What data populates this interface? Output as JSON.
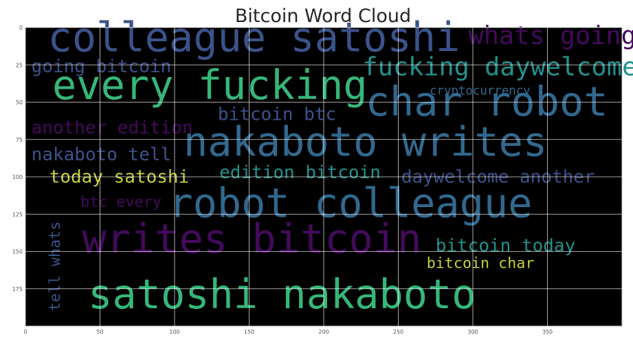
{
  "chart_data": {
    "type": "wordcloud",
    "title": "Bitcoin Word Cloud",
    "xlim": [
      0,
      400
    ],
    "ylim": [
      200,
      0
    ],
    "xticks": [
      0,
      50,
      100,
      150,
      200,
      250,
      300,
      350
    ],
    "yticks": [
      0,
      25,
      50,
      75,
      100,
      125,
      150,
      175
    ],
    "grid": true,
    "background": "#000000",
    "colors": {
      "purple": "#440a5c",
      "blue": "#3b528b",
      "teal": "#21918c",
      "green": "#35b779",
      "yellow": "#c8d33a",
      "slate": "#31688e"
    },
    "words": [
      {
        "text": "colleague satoshi",
        "x": 15,
        "y": 16,
        "size": 27,
        "color": "blue"
      },
      {
        "text": "whats going",
        "x": 297,
        "y": 11,
        "size": 17,
        "color": "purple"
      },
      {
        "text": "going bitcoin",
        "x": 4,
        "y": 30,
        "size": 12,
        "color": "blue"
      },
      {
        "text": "fucking daywelcome",
        "x": 226,
        "y": 32,
        "size": 17,
        "color": "teal"
      },
      {
        "text": "every fucking",
        "x": 18,
        "y": 48,
        "size": 27,
        "color": "green"
      },
      {
        "text": "char robot",
        "x": 228,
        "y": 59,
        "size": 27,
        "color": "slate"
      },
      {
        "text": "cryptocurrency",
        "x": 271,
        "y": 45,
        "size": 8,
        "color": "slate"
      },
      {
        "text": "bitcoin btc",
        "x": 129,
        "y": 62,
        "size": 12,
        "color": "blue"
      },
      {
        "text": "another edition",
        "x": 4,
        "y": 71,
        "size": 12,
        "color": "purple"
      },
      {
        "text": "nakaboto writes",
        "x": 106,
        "y": 86,
        "size": 27,
        "color": "slate"
      },
      {
        "text": "nakaboto tell",
        "x": 4,
        "y": 89,
        "size": 12,
        "color": "blue"
      },
      {
        "text": "edition bitcoin",
        "x": 130,
        "y": 101,
        "size": 12,
        "color": "teal"
      },
      {
        "text": "today satoshi",
        "x": 16,
        "y": 104,
        "size": 12,
        "color": "yellow"
      },
      {
        "text": "daywelcome another",
        "x": 252,
        "y": 104,
        "size": 12,
        "color": "blue"
      },
      {
        "text": "btc every",
        "x": 37,
        "y": 120,
        "size": 10,
        "color": "purple"
      },
      {
        "text": "robot colleague",
        "x": 96,
        "y": 127,
        "size": 27,
        "color": "slate"
      },
      {
        "text": "writes bitcoin",
        "x": 38,
        "y": 151,
        "size": 27,
        "color": "purple"
      },
      {
        "text": "bitcoin today",
        "x": 275,
        "y": 150,
        "size": 12,
        "color": "teal"
      },
      {
        "text": "bitcoin char",
        "x": 269,
        "y": 161,
        "size": 10,
        "color": "yellow"
      },
      {
        "text": "satoshi nakaboto",
        "x": 42,
        "y": 188,
        "size": 27,
        "color": "green"
      },
      {
        "text": "tell whats",
        "x": 23,
        "y": 190,
        "size": 10,
        "color": "blue",
        "rotate": true
      }
    ]
  }
}
